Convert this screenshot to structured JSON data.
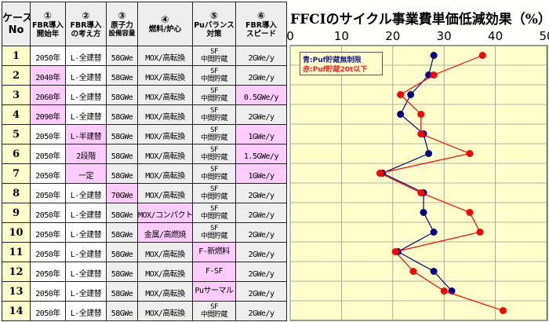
{
  "headers": {
    "case": [
      "ケース",
      "No"
    ],
    "cols": [
      {
        "num": "①",
        "lines": [
          "FBR導入",
          "開始年"
        ]
      },
      {
        "num": "②",
        "lines": [
          "FBR導入",
          "の考え方"
        ]
      },
      {
        "num": "③",
        "lines": [
          "原子力",
          "設備容量"
        ]
      },
      {
        "num": "④",
        "lines": [
          "燃料/炉心"
        ]
      },
      {
        "num": "⑤",
        "lines": [
          "Puバランス",
          "対策"
        ]
      },
      {
        "num": "⑥",
        "lines": [
          "FBR導入",
          "スピード"
        ]
      }
    ]
  },
  "rows": [
    {
      "no": "1",
      "year": "2050年",
      "concept": "L-全建替",
      "capacity": "58GWe",
      "fuel": "MOX/高転換",
      "pu": [
        "SF",
        "中間貯蔵"
      ],
      "speed": "2GWe/y",
      "hl": []
    },
    {
      "no": "2",
      "year": "2040年",
      "concept": "L-全建替",
      "capacity": "58GWe",
      "fuel": "MOX/高転換",
      "pu": [
        "SF",
        "中間貯蔵"
      ],
      "speed": "2GWe/y",
      "hl": [
        "year"
      ]
    },
    {
      "no": "3",
      "year": "2060年",
      "concept": "L-全建替",
      "capacity": "58GWe",
      "fuel": "MOX/高転換",
      "pu": [
        "SF",
        "中間貯蔵"
      ],
      "speed": "0.5GWe/y",
      "hl": [
        "year",
        "speed"
      ]
    },
    {
      "no": "4",
      "year": "2090年",
      "concept": "L-全建替",
      "capacity": "58GWe",
      "fuel": "MOX/高転換",
      "pu": [
        "SF",
        "中間貯蔵"
      ],
      "speed": "2GWe/y",
      "hl": [
        "year"
      ]
    },
    {
      "no": "5",
      "year": "2050年",
      "concept": "L-半建替",
      "capacity": "58GWe",
      "fuel": "MOX/高転換",
      "pu": [
        "SF",
        "中間貯蔵"
      ],
      "speed": "1GWe/y",
      "hl": [
        "concept",
        "speed"
      ]
    },
    {
      "no": "6",
      "year": "2050年",
      "concept": "2段階",
      "capacity": "58GWe",
      "fuel": "MOX/高転換",
      "pu": [
        "SF",
        "中間貯蔵"
      ],
      "speed": "1.5GWe/y",
      "hl": [
        "concept",
        "speed"
      ]
    },
    {
      "no": "7",
      "year": "2050年",
      "concept": "一定",
      "capacity": "58GWe",
      "fuel": "MOX/高転換",
      "pu": [
        "SF",
        "中間貯蔵"
      ],
      "speed": "1GWe/y",
      "hl": [
        "concept",
        "speed"
      ]
    },
    {
      "no": "8",
      "year": "2050年",
      "concept": "L-全建替",
      "capacity": "70GWe",
      "fuel": "MOX/高転換",
      "pu": [
        "SF",
        "中間貯蔵"
      ],
      "speed": "2GWe/y",
      "hl": [
        "capacity"
      ]
    },
    {
      "no": "9",
      "year": "2050年",
      "concept": "L-全建替",
      "capacity": "58GWe",
      "fuel": "MOX/コンパクト",
      "pu": [
        "SF",
        "中間貯蔵"
      ],
      "speed": "2GWe/y",
      "hl": [
        "fuel"
      ]
    },
    {
      "no": "10",
      "year": "2050年",
      "concept": "L-全建替",
      "capacity": "58GWe",
      "fuel": "金属/高燃焼",
      "pu": [
        "SF",
        "中間貯蔵"
      ],
      "speed": "2GWe/y",
      "hl": [
        "fuel"
      ]
    },
    {
      "no": "11",
      "year": "2050年",
      "concept": "L-全建替",
      "capacity": "58GWe",
      "fuel": "MOX/高転換",
      "pu": [
        "F-新燃料"
      ],
      "speed": "2GWe/y",
      "hl": [
        "pu"
      ]
    },
    {
      "no": "12",
      "year": "2050年",
      "concept": "L-全建替",
      "capacity": "58GWe",
      "fuel": "MOX/高転換",
      "pu": [
        "F-SF"
      ],
      "speed": "2GWe/y",
      "hl": [
        "pu"
      ]
    },
    {
      "no": "13",
      "year": "2050年",
      "concept": "L-全建替",
      "capacity": "58GWe",
      "fuel": "MOX/高転換",
      "pu": [
        "Puサーマル"
      ],
      "speed": "2GWe/y",
      "hl": [
        "pu"
      ]
    },
    {
      "no": "14",
      "year": "2050年",
      "concept": "L-全建替",
      "capacity": "58GWe",
      "fuel": "MOX/高転換",
      "pu": [
        "SF",
        "中間貯蔵"
      ],
      "speed": "2GWe/y",
      "hl": []
    }
  ],
  "colors": {
    "blue": "#000080",
    "red": "#ff0000",
    "plot_bg": "#ffffcc"
  },
  "chart_data": {
    "type": "line",
    "title": "FFCIのサイクル事業費単価低減効果（%）",
    "x_axis": {
      "min": 0,
      "max": 50,
      "ticks": [
        0,
        10,
        20,
        30,
        40,
        50
      ],
      "position": "top",
      "grid": true
    },
    "categories": [
      "1",
      "2",
      "3",
      "4",
      "5",
      "6",
      "7",
      "8",
      "9",
      "10",
      "11",
      "12",
      "13",
      "14"
    ],
    "series": [
      {
        "name": "青:Puf貯蔵無制限",
        "color": "#000080",
        "values": [
          28,
          27,
          23.5,
          21.5,
          26,
          27,
          18,
          26,
          26,
          28,
          21,
          28,
          31.5,
          null
        ]
      },
      {
        "name": "赤:Puf貯蔵20t以下",
        "color": "#ff0000",
        "values": [
          37.5,
          28,
          21.5,
          25.5,
          25.5,
          35,
          17.5,
          25.5,
          35,
          37,
          20.5,
          24,
          30,
          41.5
        ]
      }
    ],
    "legend_position": "top-left"
  }
}
